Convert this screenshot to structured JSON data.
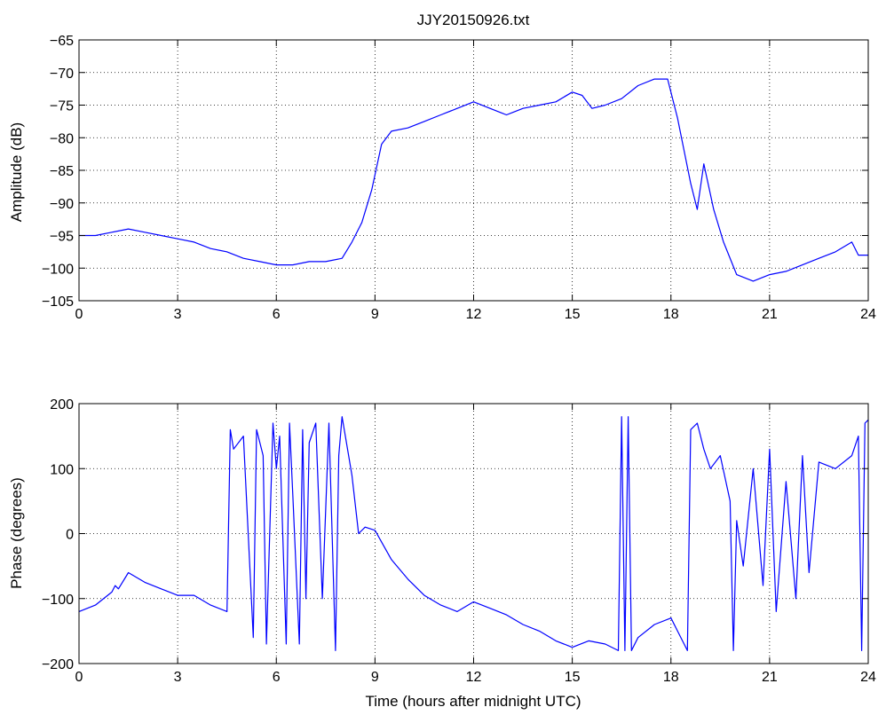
{
  "chart_data": [
    {
      "type": "line",
      "title": "JJY20150926.txt",
      "xlabel": "",
      "ylabel": "Amplitude (dB)",
      "xlim": [
        0,
        24
      ],
      "ylim": [
        -105,
        -65
      ],
      "xticks": [
        0,
        3,
        6,
        9,
        12,
        15,
        18,
        21,
        24
      ],
      "yticks": [
        -65,
        -70,
        -75,
        -80,
        -85,
        -90,
        -95,
        -100,
        -105
      ],
      "ytick_labels": [
        "−65",
        "−70",
        "−75",
        "−80",
        "−85",
        "−90",
        "−95",
        "−100",
        "−105"
      ],
      "grid": true,
      "line_color": "#0000ff",
      "series": [
        {
          "x": [
            0,
            0.5,
            1.0,
            1.5,
            2.0,
            2.5,
            3.0,
            3.5,
            4.0,
            4.5,
            5.0,
            5.5,
            6.0,
            6.5,
            7.0,
            7.5,
            8.0,
            8.3,
            8.6,
            8.9,
            9.2,
            9.5,
            10.0,
            10.5,
            11.0,
            11.5,
            12.0,
            12.5,
            13.0,
            13.5,
            14.0,
            14.5,
            15.0,
            15.3,
            15.6,
            16.0,
            16.5,
            17.0,
            17.5,
            17.9,
            18.2,
            18.4,
            18.6,
            18.8,
            19.0,
            19.3,
            19.6,
            20.0,
            20.5,
            21.0,
            21.5,
            22.0,
            22.5,
            23.0,
            23.5,
            23.7,
            24.0
          ],
          "y": [
            -95,
            -95,
            -94.5,
            -94,
            -94.5,
            -95,
            -95.5,
            -96,
            -97,
            -97.5,
            -98.5,
            -99,
            -99.5,
            -99.5,
            -99,
            -99,
            -98.5,
            -96,
            -93,
            -88,
            -81,
            -79,
            -78.5,
            -77.5,
            -76.5,
            -75.5,
            -74.5,
            -75.5,
            -76.5,
            -75.5,
            -75,
            -74.5,
            -73,
            -73.5,
            -75.5,
            -75,
            -74,
            -72,
            -71,
            -71,
            -77,
            -82,
            -87,
            -91,
            -84,
            -91,
            -96,
            -101,
            -102,
            -101,
            -100.5,
            -99.5,
            -98.5,
            -97.5,
            -96,
            -98,
            -98
          ]
        }
      ]
    },
    {
      "type": "line",
      "title": "",
      "xlabel": "Time (hours after midnight UTC)",
      "ylabel": "Phase (degrees)",
      "xlim": [
        0,
        24
      ],
      "ylim": [
        -200,
        200
      ],
      "xticks": [
        0,
        3,
        6,
        9,
        12,
        15,
        18,
        21,
        24
      ],
      "yticks": [
        200,
        100,
        0,
        -100,
        -200
      ],
      "ytick_labels": [
        "200",
        "100",
        "0",
        "−100",
        "−200"
      ],
      "grid": true,
      "line_color": "#0000ff",
      "series": [
        {
          "x": [
            0,
            0.5,
            1.0,
            1.1,
            1.2,
            1.5,
            2.0,
            2.5,
            3.0,
            3.5,
            4.0,
            4.5,
            4.6,
            4.7,
            5.0,
            5.3,
            5.4,
            5.6,
            5.7,
            5.9,
            6.0,
            6.1,
            6.3,
            6.4,
            6.5,
            6.7,
            6.8,
            6.9,
            7.0,
            7.2,
            7.4,
            7.6,
            7.8,
            7.9,
            8.0,
            8.1,
            8.3,
            8.5,
            8.7,
            9.0,
            9.5,
            10.0,
            10.5,
            11.0,
            11.5,
            12.0,
            12.5,
            13.0,
            13.5,
            14.0,
            14.5,
            15.0,
            15.5,
            16.0,
            16.4,
            16.5,
            16.6,
            16.7,
            16.8,
            17.0,
            17.5,
            18.0,
            18.2,
            18.4,
            18.5,
            18.6,
            18.8,
            19.0,
            19.2,
            19.5,
            19.8,
            19.9,
            20.0,
            20.2,
            20.5,
            20.8,
            21.0,
            21.2,
            21.5,
            21.8,
            22.0,
            22.2,
            22.5,
            23.0,
            23.5,
            23.7,
            23.8,
            23.9,
            24.0
          ],
          "y": [
            -120,
            -110,
            -90,
            -80,
            -85,
            -60,
            -75,
            -85,
            -95,
            -95,
            -110,
            -120,
            160,
            130,
            150,
            -160,
            160,
            120,
            -170,
            170,
            100,
            150,
            -170,
            170,
            60,
            -170,
            160,
            -100,
            140,
            170,
            -100,
            170,
            -180,
            120,
            180,
            150,
            90,
            0,
            10,
            5,
            -40,
            -70,
            -95,
            -110,
            -120,
            -105,
            -115,
            -125,
            -140,
            -150,
            -165,
            -175,
            -165,
            -170,
            -180,
            180,
            -180,
            180,
            -180,
            -160,
            -140,
            -130,
            -150,
            -170,
            -180,
            160,
            170,
            130,
            100,
            120,
            50,
            -180,
            20,
            -50,
            100,
            -80,
            130,
            -120,
            80,
            -100,
            120,
            -60,
            110,
            100,
            120,
            150,
            -180,
            170,
            175
          ]
        }
      ]
    }
  ]
}
